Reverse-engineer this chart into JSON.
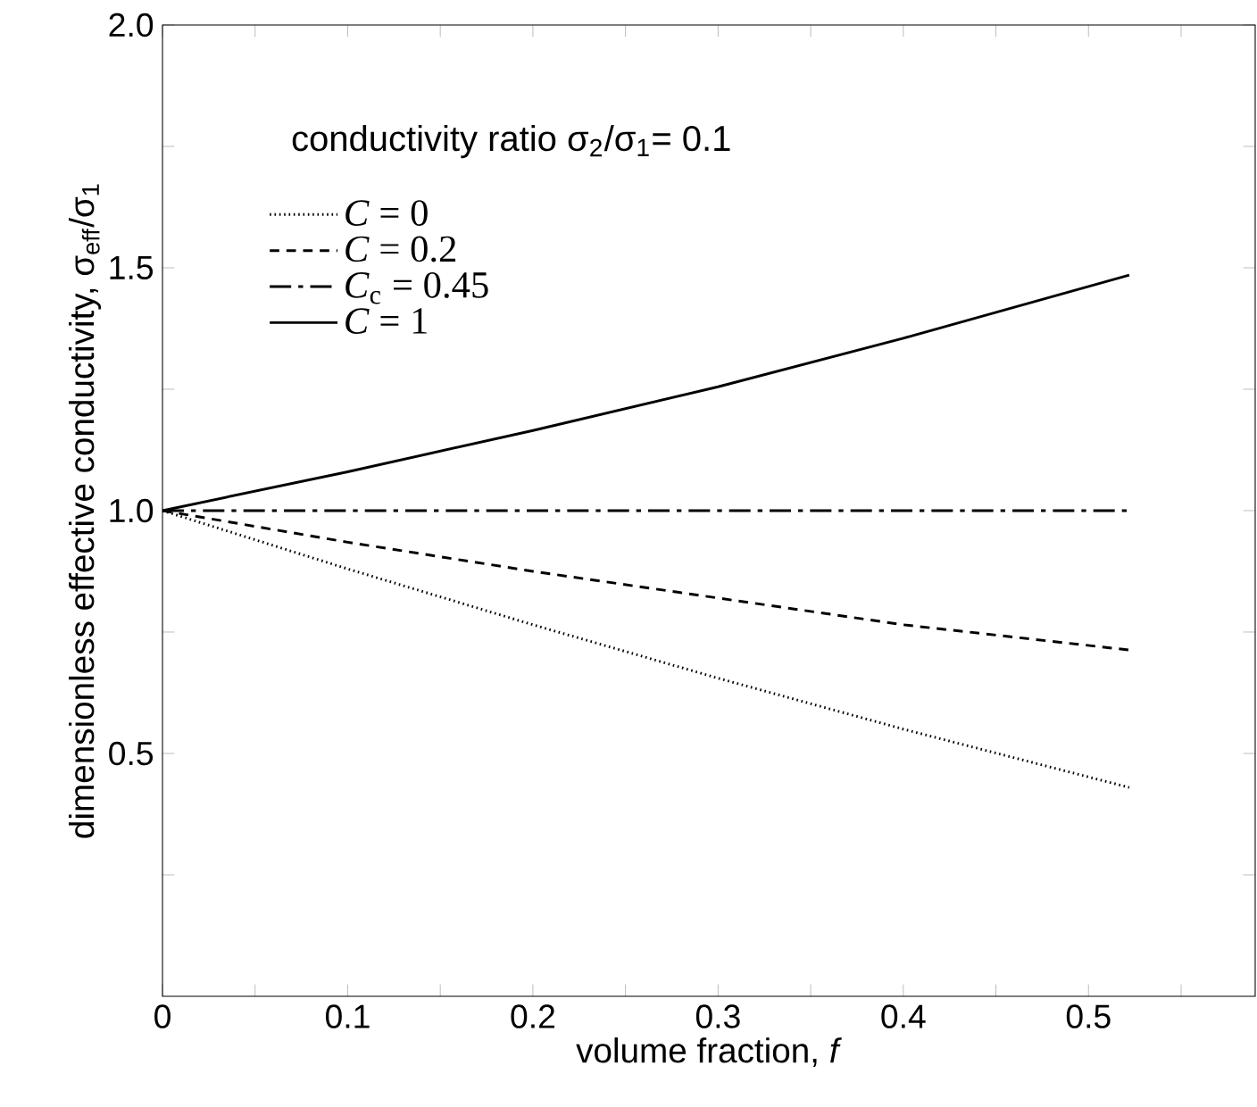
{
  "chart_data": {
    "type": "line",
    "xlabel": "volume fraction, *f*",
    "ylabel": "dimensionless effective conductivity, σ$_{eff}$/σ$_{1}$",
    "annotations": [
      "conductivity ratio σ$_{2}$/σ$_{1}$= 0.1"
    ],
    "x": [
      0,
      0.1,
      0.2,
      0.3,
      0.4,
      0.522
    ],
    "series": [
      {
        "name": "*C* = 0",
        "color": "#000000",
        "line_style": "dotted",
        "values": [
          1,
          0.88,
          0.765,
          0.655,
          0.55,
          0.43
        ]
      },
      {
        "name": "*C* = 0.2",
        "color": "#000000",
        "line_style": "dashed",
        "values": [
          1,
          0.935,
          0.875,
          0.82,
          0.765,
          0.713
        ]
      },
      {
        "name": "*C*$_{c}$ = 0.45",
        "color": "#000000",
        "line_style": "dashdot",
        "values": [
          1,
          1,
          1,
          1,
          1,
          1
        ]
      },
      {
        "name": "*C* = 1",
        "color": "#000000",
        "line_style": "solid",
        "values": [
          1,
          1.08,
          1.165,
          1.255,
          1.355,
          1.485
        ]
      }
    ],
    "xlim": [
      0,
      0.59
    ],
    "ylim": [
      0,
      2
    ],
    "xticks": [
      0,
      {
        "value": 0.05,
        "label": null
      },
      0.1,
      {
        "value": 0.15,
        "label": null
      },
      0.2,
      {
        "value": 0.25,
        "label": null
      },
      0.3,
      {
        "value": 0.35,
        "label": null
      },
      0.4,
      {
        "value": 0.45,
        "label": null
      },
      0.5,
      {
        "value": 0.55,
        "label": null
      }
    ],
    "yticks": [
      {
        "value": 0.25,
        "label": null
      },
      0.5,
      {
        "value": 0.75,
        "label": null
      },
      {
        "value": 1.0,
        "label": "1.0"
      },
      {
        "value": 1.25,
        "label": null
      },
      1.5,
      {
        "value": 1.75,
        "label": null
      },
      {
        "value": 2.0,
        "label": "2.0"
      }
    ],
    "grid": false,
    "legend": "top left",
    "marker": "none"
  }
}
